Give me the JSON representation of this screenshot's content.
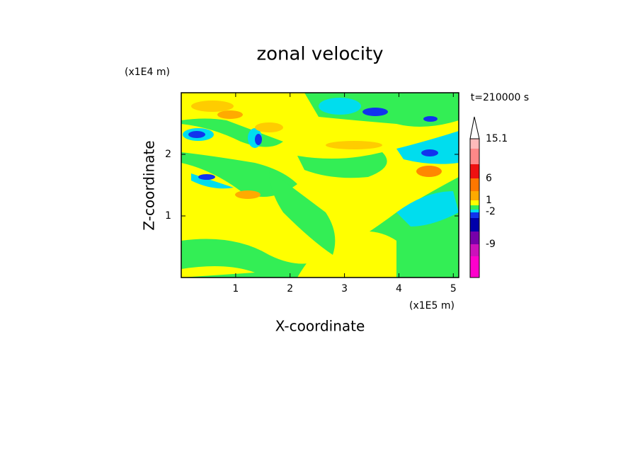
{
  "chart_data": {
    "type": "contour",
    "title": "zonal velocity",
    "x_label": "X-coordinate",
    "y_label": "Z-coordinate",
    "x_unit_label": "(x1E5 m)",
    "y_unit_label": "(x1E4 m)",
    "time_label": "t=210000 s",
    "xlim": [
      0,
      5.1
    ],
    "xticks": [
      1,
      2,
      3,
      4,
      5
    ],
    "ylim": [
      0,
      3
    ],
    "yticks": [
      1,
      2
    ],
    "colorbar_labels": [
      15.1,
      6,
      1,
      -2,
      -9
    ]
  }
}
